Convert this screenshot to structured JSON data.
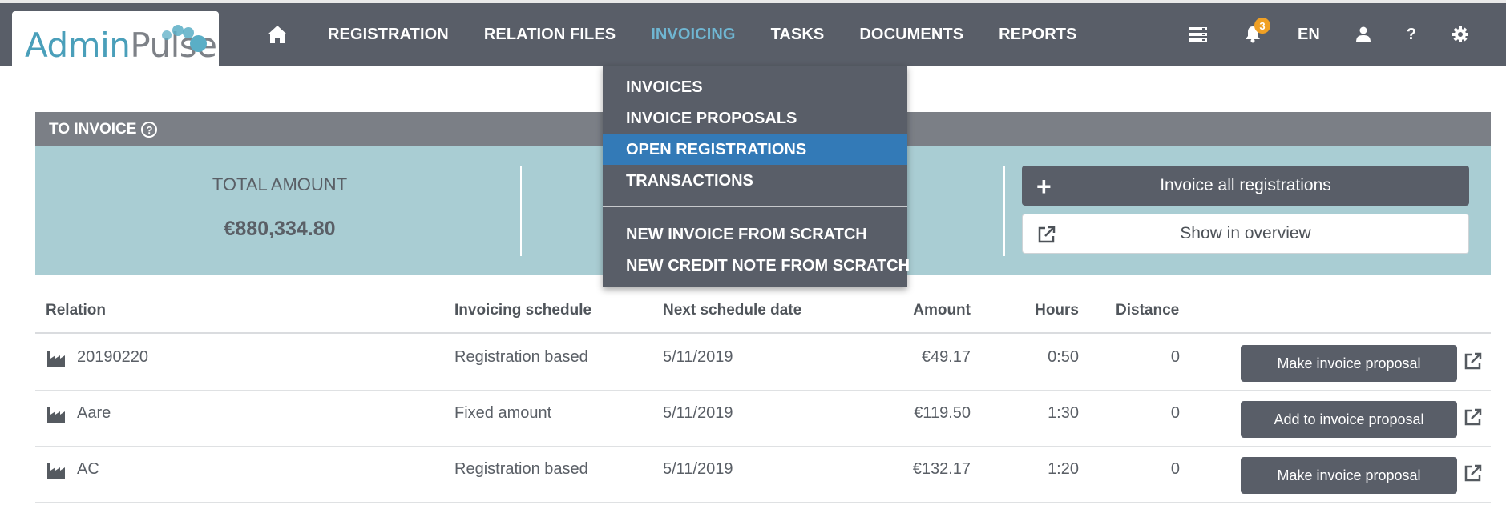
{
  "app": {
    "logo_admin": "Admin",
    "logo_pulse": "Pulse"
  },
  "nav": {
    "items": [
      {
        "label": "REGISTRATION",
        "active": false
      },
      {
        "label": "RELATION FILES",
        "active": false
      },
      {
        "label": "INVOICING",
        "active": true
      },
      {
        "label": "TASKS",
        "active": false
      },
      {
        "label": "DOCUMENTS",
        "active": false
      },
      {
        "label": "REPORTS",
        "active": false
      }
    ],
    "notification_count": "3",
    "language": "EN",
    "help": "?"
  },
  "invoicing_menu": {
    "items": [
      "INVOICES",
      "INVOICE PROPOSALS",
      "OPEN REGISTRATIONS",
      "TRANSACTIONS"
    ],
    "selected": "OPEN REGISTRATIONS",
    "extra_items": [
      "NEW INVOICE FROM SCRATCH",
      "NEW CREDIT NOTE FROM SCRATCH"
    ]
  },
  "to_invoice": {
    "title": "TO INVOICE",
    "total_label": "TOTAL AMOUNT",
    "total_value": "€880,334.80",
    "invoice_all_label": "Invoice all registrations",
    "show_overview_label": "Show in overview"
  },
  "table": {
    "headers": {
      "relation": "Relation",
      "schedule": "Invoicing schedule",
      "next_date": "Next schedule date",
      "amount": "Amount",
      "hours": "Hours",
      "distance": "Distance"
    },
    "rows": [
      {
        "relation": "20190220",
        "schedule": "Registration based",
        "next_date": "5/11/2019",
        "amount": "€49.17",
        "hours": "0:50",
        "distance": "0",
        "action": "Make invoice proposal"
      },
      {
        "relation": "Aare",
        "schedule": "Fixed amount",
        "next_date": "5/11/2019",
        "amount": "€119.50",
        "hours": "1:30",
        "distance": "0",
        "action": "Add to invoice proposal"
      },
      {
        "relation": "AC",
        "schedule": "Registration based",
        "next_date": "5/11/2019",
        "amount": "€132.17",
        "hours": "1:20",
        "distance": "0",
        "action": "Make invoice proposal"
      }
    ]
  },
  "colors": {
    "nav_bg": "#595e68",
    "accent_blue": "#6fb6d2",
    "selected_blue": "#337ab7",
    "panel_bg": "#a9cdd3",
    "badge": "#f0a024"
  },
  "icons": [
    "home-icon",
    "server-list-icon",
    "bell-icon",
    "user-icon",
    "gear-icon",
    "help-circle-icon",
    "plus-icon",
    "external-link-icon",
    "factory-icon"
  ]
}
